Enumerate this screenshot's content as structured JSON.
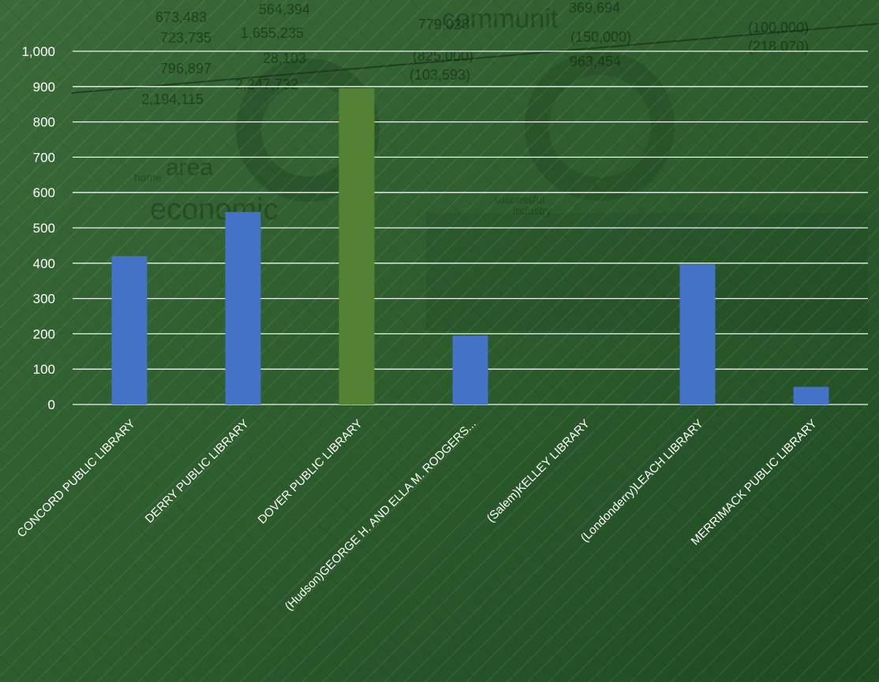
{
  "chart_data": {
    "type": "bar",
    "categories": [
      "CONCORD PUBLIC LIBRARY",
      "DERRY PUBLIC LIBRARY",
      "DOVER PUBLIC LIBRARY",
      "(Hudson)GEORGE H. AND ELLA M. RODGERS...",
      "(Salem)KELLEY LIBRARY",
      "(Londonderry)LEACH LIBRARY",
      "MERRIMACK PUBLIC LIBRARY"
    ],
    "values": [
      420,
      545,
      895,
      195,
      0,
      397,
      50
    ],
    "bar_colors": [
      "#4472c4",
      "#4472c4",
      "#548235",
      "#4472c4",
      "#4472c4",
      "#4472c4",
      "#4472c4"
    ],
    "ylim": [
      0,
      1000
    ],
    "yticks": [
      0,
      100,
      200,
      300,
      400,
      500,
      600,
      700,
      800,
      900,
      1000
    ],
    "ytick_labels": [
      "0",
      "100",
      "200",
      "300",
      "400",
      "500",
      "600",
      "700",
      "800",
      "900",
      "1,000"
    ],
    "grid": true,
    "legend": "none",
    "title": "",
    "xlabel": "",
    "ylabel": ""
  },
  "background": {
    "watermark_numbers": [
      "673,483",
      "723,735",
      "796,897",
      "2,194,115",
      "564,394",
      "1,655,235",
      "28,103",
      "2,247,732",
      "779,028",
      "(825,000)",
      "(103,593)",
      "369,694",
      "(150,000)",
      "963,454",
      "(100,000)",
      "(218,070)"
    ],
    "watermark_words": [
      "communit",
      "area",
      "economic",
      "home",
      "successful",
      "industry"
    ],
    "colors": {
      "dark_green": "#1f4a22",
      "mid_green": "#2f5f2f",
      "light_green": "#3d6e3a"
    }
  }
}
